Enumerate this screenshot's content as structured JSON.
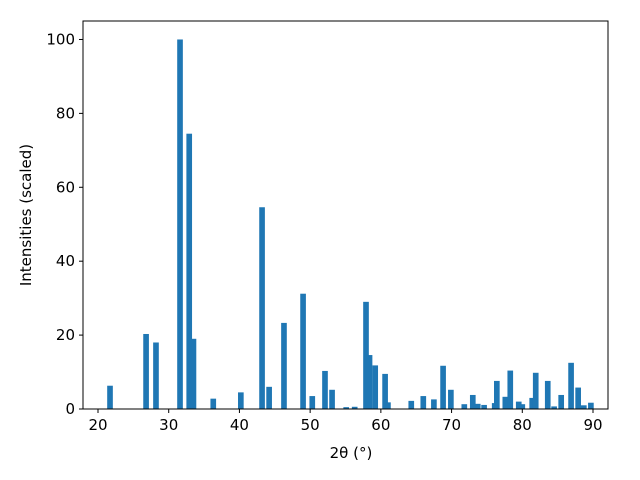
{
  "chart_data": {
    "type": "bar",
    "x_label": "2θ (°)",
    "y_label": "Intensities (scaled)",
    "color": "#1f77b4",
    "x": [
      21.7,
      26.8,
      28.2,
      31.6,
      32.9,
      33.5,
      36.3,
      40.2,
      43.2,
      44.2,
      46.3,
      49.0,
      50.3,
      52.1,
      53.1,
      55.1,
      56.3,
      57.9,
      58.4,
      59.2,
      60.6,
      61.0,
      64.3,
      66.0,
      67.5,
      68.8,
      69.9,
      71.8,
      73.0,
      73.7,
      74.6,
      76.1,
      76.4,
      77.6,
      78.3,
      79.5,
      80.0,
      81.4,
      81.9,
      83.6,
      84.5,
      85.5,
      86.9,
      87.9,
      88.7,
      89.7
    ],
    "values": [
      6.3,
      20.3,
      18,
      100,
      74.5,
      19,
      2.8,
      4.5,
      54.6,
      6,
      23.3,
      31.2,
      3.5,
      10.3,
      5.2,
      0.5,
      0.6,
      29,
      14.6,
      11.8,
      9.5,
      1.8,
      2.2,
      3.5,
      2.6,
      11.7,
      5.2,
      1.3,
      3.8,
      1.4,
      1.1,
      1.6,
      7.6,
      3.3,
      10.4,
      2,
      1.3,
      3,
      9.8,
      7.6,
      0.7,
      3.8,
      12.5,
      5.8,
      1,
      1.7
    ],
    "xlim": [
      17.88,
      92.12
    ],
    "ylim": [
      0,
      105
    ],
    "xticks": [
      20,
      30,
      40,
      50,
      60,
      70,
      80,
      90
    ],
    "yticks": [
      0,
      20,
      40,
      60,
      80,
      100
    ]
  }
}
